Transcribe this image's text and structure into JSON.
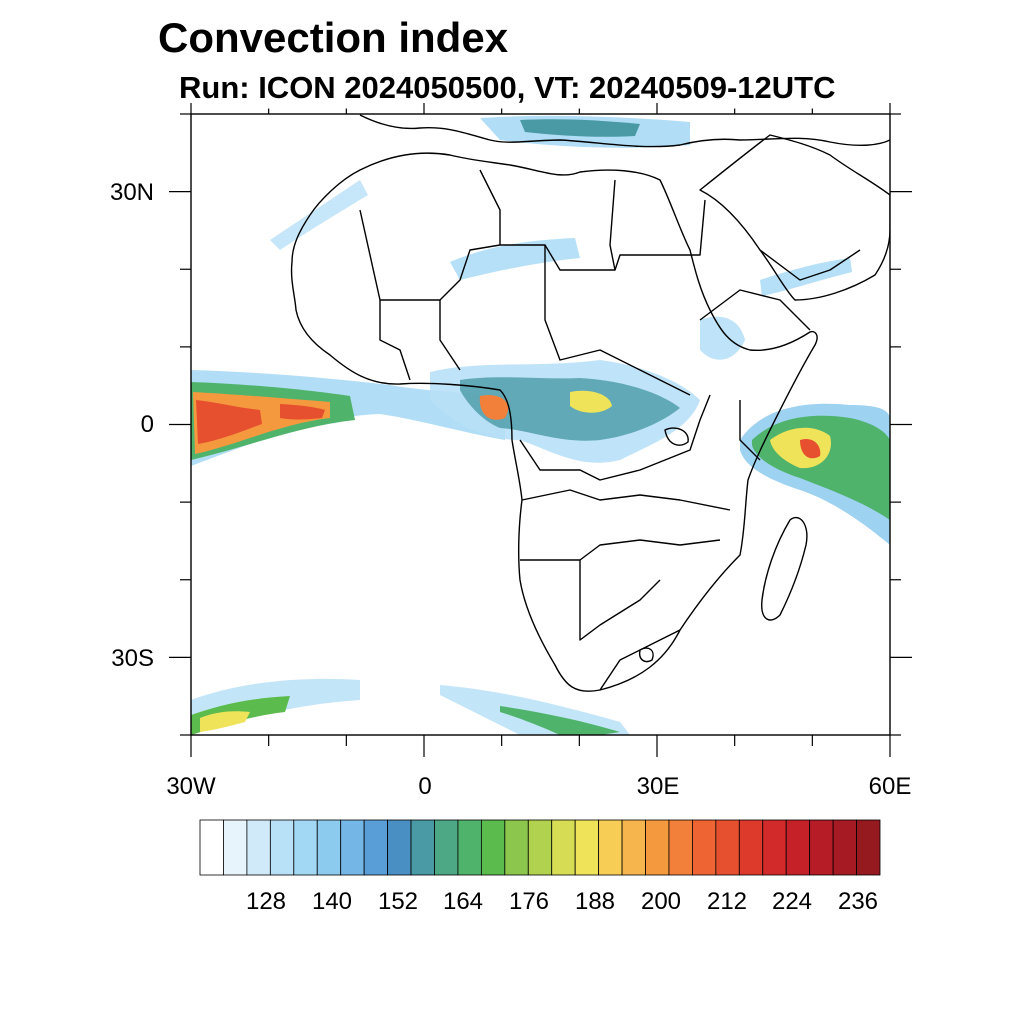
{
  "map": {
    "title": "Convection index",
    "subtitle": "Run: ICON 2024050500,  VT: 20240509-12UTC",
    "lat_labels": [
      "30N",
      "0",
      "30S"
    ],
    "lon_labels": [
      "30W",
      "0",
      "30E",
      "60E"
    ],
    "region": {
      "lon_range": [
        -30,
        60
      ],
      "lat_range": [
        -40,
        40
      ]
    },
    "layers": [
      "convection-index-shading",
      "coastlines",
      "country-borders"
    ]
  },
  "colorbar": {
    "tick_labels": [
      "128",
      "140",
      "152",
      "164",
      "176",
      "188",
      "200",
      "212",
      "224",
      "236"
    ],
    "colors": [
      "#ffffff",
      "#e8f4fc",
      "#d0eaf9",
      "#b8e0f7",
      "#a3d8f5",
      "#8ccaee",
      "#74b6e6",
      "#5a9ed8",
      "#4a8fc4",
      "#4a9aa5",
      "#4da886",
      "#4fb36c",
      "#5cbb4d",
      "#8cc64c",
      "#b1d24f",
      "#d6dd55",
      "#efe35a",
      "#f8cd56",
      "#f7b54e",
      "#f5993f",
      "#f2803a",
      "#ee6533",
      "#e6502e",
      "#de3a2b",
      "#d22a2a",
      "#c52128",
      "#b61c26",
      "#a51a23",
      "#941a1f"
    ]
  }
}
